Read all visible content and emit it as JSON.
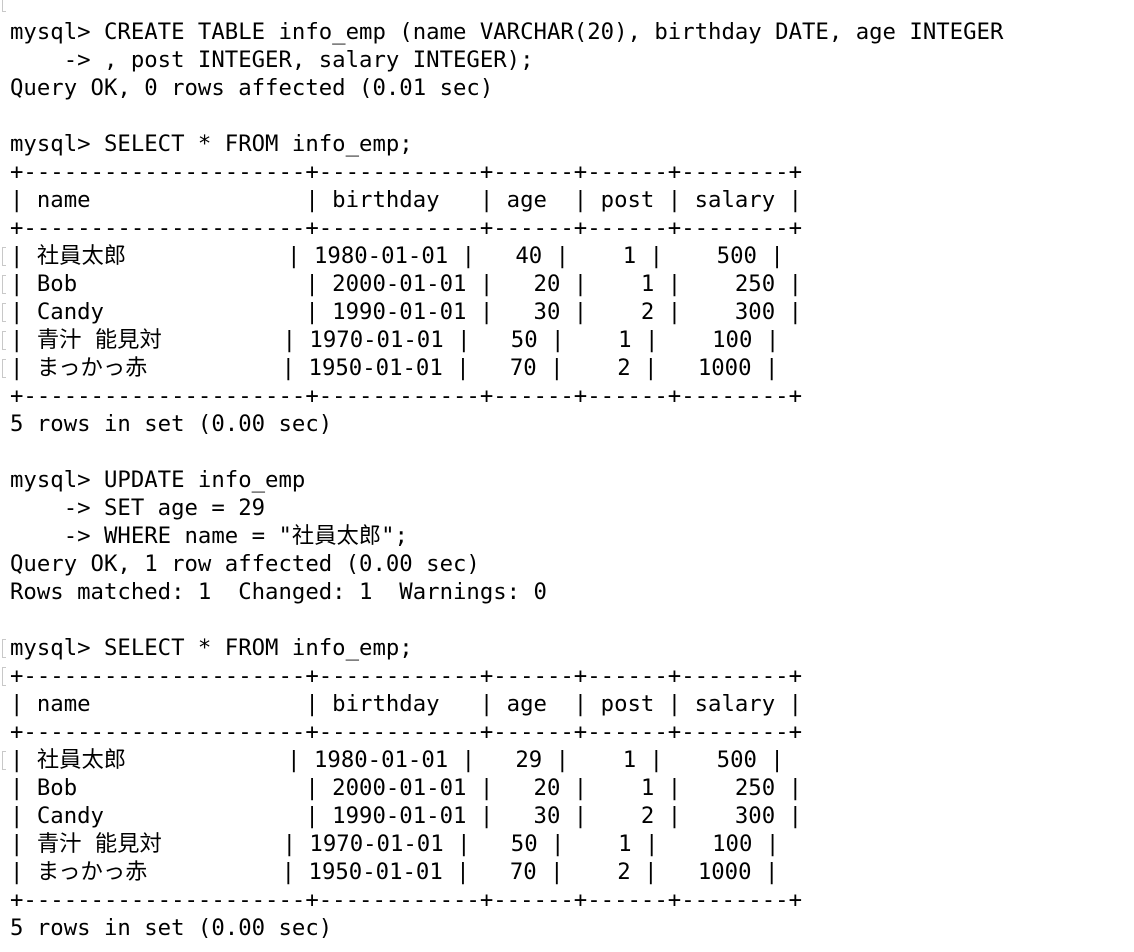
{
  "lines": [
    {
      "text": "mysql> CREATE TABLE info_emp (name VARCHAR(20), birthday DATE, age INTEGER",
      "marked": false
    },
    {
      "text": "    -> , post INTEGER, salary INTEGER);",
      "marked": false
    },
    {
      "text": "Query OK, 0 rows affected (0.01 sec)",
      "marked": false
    },
    {
      "text": "",
      "marked": false
    },
    {
      "text": "mysql> SELECT * FROM info_emp;",
      "marked": false
    },
    {
      "text": "+---------------------+------------+------+------+--------+",
      "marked": false
    },
    {
      "text": "| name                | birthday   | age  | post | salary |",
      "marked": false
    },
    {
      "text": "+---------------------+------------+------+------+--------+",
      "marked": false
    },
    {
      "text": "| 社員太郎            | 1980-01-01 |   40 |    1 |    500 |",
      "marked": true
    },
    {
      "text": "| Bob                 | 2000-01-01 |   20 |    1 |    250 |",
      "marked": true
    },
    {
      "text": "| Candy               | 1990-01-01 |   30 |    2 |    300 |",
      "marked": true
    },
    {
      "text": "| 青汁 能見対         | 1970-01-01 |   50 |    1 |    100 |",
      "marked": true
    },
    {
      "text": "| まっかっ赤          | 1950-01-01 |   70 |    2 |   1000 |",
      "marked": true
    },
    {
      "text": "+---------------------+------------+------+------+--------+",
      "marked": false
    },
    {
      "text": "5 rows in set (0.00 sec)",
      "marked": false
    },
    {
      "text": "",
      "marked": false
    },
    {
      "text": "mysql> UPDATE info_emp",
      "marked": false
    },
    {
      "text": "    -> SET age = 29",
      "marked": false
    },
    {
      "text": "    -> WHERE name = \"社員太郎\";",
      "marked": false
    },
    {
      "text": "Query OK, 1 row affected (0.00 sec)",
      "marked": false
    },
    {
      "text": "Rows matched: 1  Changed: 1  Warnings: 0",
      "marked": false
    },
    {
      "text": "",
      "marked": false
    },
    {
      "text": "mysql> SELECT * FROM info_emp;",
      "marked": true
    },
    {
      "text": "+---------------------+------------+------+------+--------+",
      "marked": true
    },
    {
      "text": "| name                | birthday   | age  | post | salary |",
      "marked": false
    },
    {
      "text": "+---------------------+------------+------+------+--------+",
      "marked": false
    },
    {
      "text": "| 社員太郎            | 1980-01-01 |   29 |    1 |    500 |",
      "marked": true
    },
    {
      "text": "| Bob                 | 2000-01-01 |   20 |    1 |    250 |",
      "marked": false
    },
    {
      "text": "| Candy               | 1990-01-01 |   30 |    2 |    300 |",
      "marked": false
    },
    {
      "text": "| 青汁 能見対         | 1970-01-01 |   50 |    1 |    100 |",
      "marked": false
    },
    {
      "text": "| まっかっ赤          | 1950-01-01 |   70 |    2 |   1000 |",
      "marked": false
    },
    {
      "text": "+---------------------+------------+------+------+--------+",
      "marked": false
    },
    {
      "text": "5 rows in set (0.00 sec)",
      "marked": false
    }
  ]
}
